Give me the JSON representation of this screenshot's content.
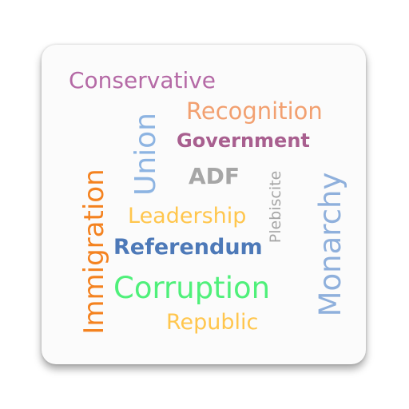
{
  "words": [
    {
      "text": "Conservative",
      "color": "#b56aa6"
    },
    {
      "text": "Recognition",
      "color": "#f2a070"
    },
    {
      "text": "Government",
      "color": "#a85f8f"
    },
    {
      "text": "Union",
      "color": "#8db4e2"
    },
    {
      "text": "ADF",
      "color": "#a6a6a6"
    },
    {
      "text": "Plebiscite",
      "color": "#a6a6a6"
    },
    {
      "text": "Monarchy",
      "color": "#8fb0dc"
    },
    {
      "text": "Immigration",
      "color": "#f4821f"
    },
    {
      "text": "Leadership",
      "color": "#ffc64d"
    },
    {
      "text": "Referendum",
      "color": "#4d79b8"
    },
    {
      "text": "Corruption",
      "color": "#4ff07a"
    },
    {
      "text": "Republic",
      "color": "#ffc64d"
    }
  ]
}
